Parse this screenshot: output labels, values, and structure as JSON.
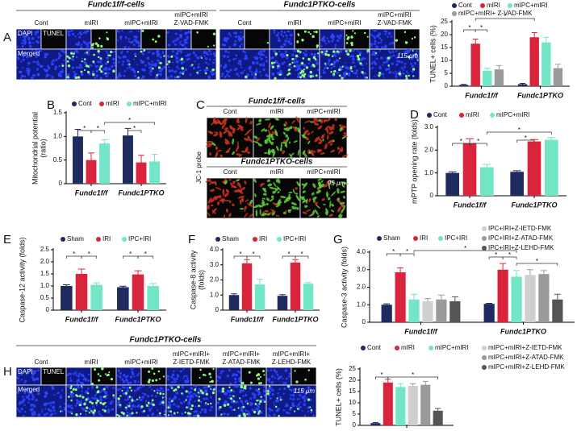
{
  "figure": {
    "letters": [
      "A",
      "B",
      "C",
      "D",
      "E",
      "F",
      "G",
      "H"
    ],
    "a": {
      "headings": [
        "Fundc1f/f-cells",
        "Fundc1PTKO-cells"
      ],
      "conditions": [
        [
          "Cont"
        ],
        [
          "mIRI"
        ],
        [
          "mIPC+mIRI"
        ],
        [
          "mIPC+mIRI",
          "Z-VAD-FMK"
        ]
      ],
      "channels": [
        "DAPI",
        "TUNEL",
        "Merged"
      ],
      "scale": "115 μm"
    },
    "c": {
      "headings": [
        "Fundc1f/f-cells",
        "Fundc1PTKO-cells"
      ],
      "conditions": [
        "Cont",
        "mIRI",
        "mIPC+mIRI"
      ],
      "probe": "JC-1 probe",
      "scale": "95 μm"
    },
    "h": {
      "heading": "Fundc1PTKO-cells",
      "conditions": [
        [
          "Cont"
        ],
        [
          "mIRI"
        ],
        [
          "mIPC+mIRI"
        ],
        [
          "mIPC+mIRI+",
          "Z-IETD-FMK"
        ],
        [
          "mIPC+mIRI+",
          "Z-ATAD-FMK"
        ],
        [
          "mIPC+mIRI+",
          "Z-LEHD-FMK"
        ]
      ],
      "channels": [
        "DAPI",
        "TUNEL",
        "Merged"
      ],
      "scale": "115 μm"
    }
  },
  "chart_data": [
    {
      "type": "bar",
      "ylabel": [
        "TUNEL+ cells (%)"
      ],
      "categories": [
        "Fundc1f/f",
        "Fundc1PTKO"
      ],
      "series": [
        {
          "name": "Cont",
          "color": "#1f2b5e",
          "values": [
            0.5,
            0.8
          ],
          "errors": [
            0.2,
            0.3
          ]
        },
        {
          "name": "mIRI",
          "color": "#d9253b",
          "values": [
            16.5,
            19
          ],
          "errors": [
            1.8,
            1.8
          ]
        },
        {
          "name": "mIPC+mIRI",
          "color": "#72e6c6",
          "values": [
            6,
            17
          ],
          "errors": [
            1,
            2
          ]
        },
        {
          "name": "mIPC+mIRI+ Z-VAD-FMK",
          "color": "#9a9a9a",
          "values": [
            6.5,
            7
          ],
          "errors": [
            1.5,
            1.5
          ]
        }
      ],
      "ylim": [
        0,
        25
      ],
      "yticks": [
        0,
        5,
        10,
        15,
        20,
        25
      ],
      "annotations": [
        "*",
        "*",
        "*"
      ]
    },
    {
      "type": "bar",
      "ylabel": [
        "Mitochondrial potential",
        "(ratio)"
      ],
      "categories": [
        "Fundc1f/f",
        "Fundc1PTKO"
      ],
      "series": [
        {
          "name": "Cont",
          "color": "#1f2b5e",
          "values": [
            1.0,
            1.02
          ],
          "errors": [
            0.15,
            0.15
          ]
        },
        {
          "name": "mIRI",
          "color": "#d9253b",
          "values": [
            0.5,
            0.45
          ],
          "errors": [
            0.15,
            0.15
          ]
        },
        {
          "name": "mIPC+mIRI",
          "color": "#72e6c6",
          "values": [
            0.85,
            0.47
          ],
          "errors": [
            0.08,
            0.15
          ]
        }
      ],
      "ylim": [
        0,
        1.5
      ],
      "yticks": [
        0,
        0.5,
        {
          "value": 1,
          "label": "1.0"
        },
        1.5
      ],
      "annotations": [
        "*",
        "*",
        "*",
        "*"
      ]
    },
    {
      "type": "bar",
      "ylabel": [
        "mPTP opening rate (folds)"
      ],
      "categories": [
        "Fundc1f/f",
        "Fundc1PTKO"
      ],
      "series": [
        {
          "name": "Cont",
          "color": "#1f2b5e",
          "values": [
            1.0,
            1.05
          ],
          "errors": [
            0.05,
            0.05
          ]
        },
        {
          "name": "mIRI",
          "color": "#d9253b",
          "values": [
            2.3,
            2.38
          ],
          "errors": [
            0.2,
            0.08
          ]
        },
        {
          "name": "mIPC+mIRI",
          "color": "#72e6c6",
          "values": [
            1.25,
            2.45
          ],
          "errors": [
            0.12,
            0.1
          ]
        }
      ],
      "ylim": [
        0,
        3
      ],
      "yticks": [
        0,
        {
          "value": 1,
          "label": "1.0"
        },
        {
          "value": 2,
          "label": "2.0"
        },
        {
          "value": 3,
          "label": "3.0"
        }
      ],
      "annotations": [
        "*",
        "*",
        "*",
        "*"
      ]
    },
    {
      "type": "bar",
      "ylabel": [
        "Caspase-12 activity (folds)"
      ],
      "categories": [
        "Fundc1f/f",
        "Fundc1PTKO"
      ],
      "series": [
        {
          "name": "Sham",
          "color": "#1f2b5e",
          "values": [
            1.0,
            0.95
          ],
          "errors": [
            0.05,
            0.04
          ]
        },
        {
          "name": "IRI",
          "color": "#d9253b",
          "values": [
            1.5,
            1.48
          ],
          "errors": [
            0.2,
            0.15
          ]
        },
        {
          "name": "IPC+IRI",
          "color": "#72e6c6",
          "values": [
            1.05,
            1.0
          ],
          "errors": [
            0.08,
            0.1
          ]
        }
      ],
      "ylim": [
        0,
        2.5
      ],
      "yticks": [
        0,
        0.5,
        {
          "value": 1,
          "label": "1.0"
        },
        1.5,
        {
          "value": 2,
          "label": "2.0"
        },
        2.5
      ],
      "annotations": [
        "*",
        "*",
        "*",
        "*"
      ]
    },
    {
      "type": "bar",
      "ylabel": [
        "Caspase-8 activity",
        "(folds)"
      ],
      "categories": [
        "Fundc1f/f",
        "Fundc1PTKO"
      ],
      "series": [
        {
          "name": "Sham",
          "color": "#1f2b5e",
          "values": [
            1.0,
            0.95
          ],
          "errors": [
            0.08,
            0.08
          ]
        },
        {
          "name": "IRI",
          "color": "#d9253b",
          "values": [
            3.1,
            3.15
          ],
          "errors": [
            0.25,
            0.2
          ]
        },
        {
          "name": "IPC+IRI",
          "color": "#72e6c6",
          "values": [
            1.7,
            1.75
          ],
          "errors": [
            0.35,
            0.08
          ]
        }
      ],
      "ylim": [
        0,
        4
      ],
      "yticks": [
        0,
        {
          "value": 1,
          "label": "1.0"
        },
        {
          "value": 2,
          "label": "2.0"
        },
        {
          "value": 3,
          "label": "3.0"
        },
        {
          "value": 4,
          "label": "4.0"
        }
      ],
      "annotations": [
        "*",
        "*",
        "*",
        "*"
      ]
    },
    {
      "type": "bar",
      "ylabel": [
        "Caspase-3 activity (folds)"
      ],
      "categories": [
        "Fundc1f/f",
        "Fundc1PTKO"
      ],
      "series": [
        {
          "name": "Sham",
          "color": "#1f2b5e",
          "values": [
            1.0,
            1.05
          ],
          "errors": [
            0.05,
            0.03
          ]
        },
        {
          "name": "IRI",
          "color": "#d9253b",
          "values": [
            2.85,
            3.0
          ],
          "errors": [
            0.25,
            0.35
          ]
        },
        {
          "name": "IPC+IRI",
          "color": "#72e6c6",
          "values": [
            1.3,
            2.6
          ],
          "errors": [
            0.3,
            0.35
          ]
        },
        {
          "name": "IPC+IRI+Z-IETD-FMK",
          "color": "#cfcfcf",
          "values": [
            1.2,
            2.7
          ],
          "errors": [
            0.15,
            0.3
          ]
        },
        {
          "name": "IPC+IRI+Z-ATAD-FMK",
          "color": "#9a9a9a",
          "values": [
            1.3,
            2.75
          ],
          "errors": [
            0.25,
            0.2
          ]
        },
        {
          "name": "IPC+IRI+Z-LEHD-FMK",
          "color": "#555555",
          "values": [
            1.2,
            1.3
          ],
          "errors": [
            0.25,
            0.3
          ]
        }
      ],
      "ylim": [
        0,
        4
      ],
      "yticks": [
        0,
        {
          "value": 1,
          "label": "1.0"
        },
        {
          "value": 2,
          "label": "2.0"
        },
        {
          "value": 3,
          "label": "3.0"
        },
        {
          "value": 4,
          "label": "4.0"
        }
      ],
      "annotations": [
        "*",
        "*",
        "*",
        "*",
        "*",
        "*"
      ]
    },
    {
      "type": "bar",
      "ylabel": [
        "TUNEL+ cells (%)"
      ],
      "categories": [
        null
      ],
      "series": [
        {
          "name": "Cont",
          "color": "#1f2b5e",
          "values": [
            1
          ],
          "errors": [
            0.3
          ]
        },
        {
          "name": "mIRI",
          "color": "#d9253b",
          "values": [
            19
          ],
          "errors": [
            1.5
          ]
        },
        {
          "name": "mIPC+mIRI",
          "color": "#72e6c6",
          "values": [
            17
          ],
          "errors": [
            1.5
          ]
        },
        {
          "name": "mIPC+mIRI+Z-IETD-FMK",
          "color": "#cfcfcf",
          "values": [
            17.5
          ],
          "errors": [
            1
          ]
        },
        {
          "name": "mIPC+mIRI+Z-ATAD-FMK",
          "color": "#9a9a9a",
          "values": [
            18
          ],
          "errors": [
            1.5
          ]
        },
        {
          "name": "mIPC+mIRI+Z-LEHD-FMK",
          "color": "#555555",
          "values": [
            6.5
          ],
          "errors": [
            1
          ]
        }
      ],
      "ylim": [
        0,
        25
      ],
      "yticks": [
        0,
        5,
        10,
        15,
        20,
        25
      ],
      "annotations": [
        "*",
        "*"
      ]
    }
  ]
}
